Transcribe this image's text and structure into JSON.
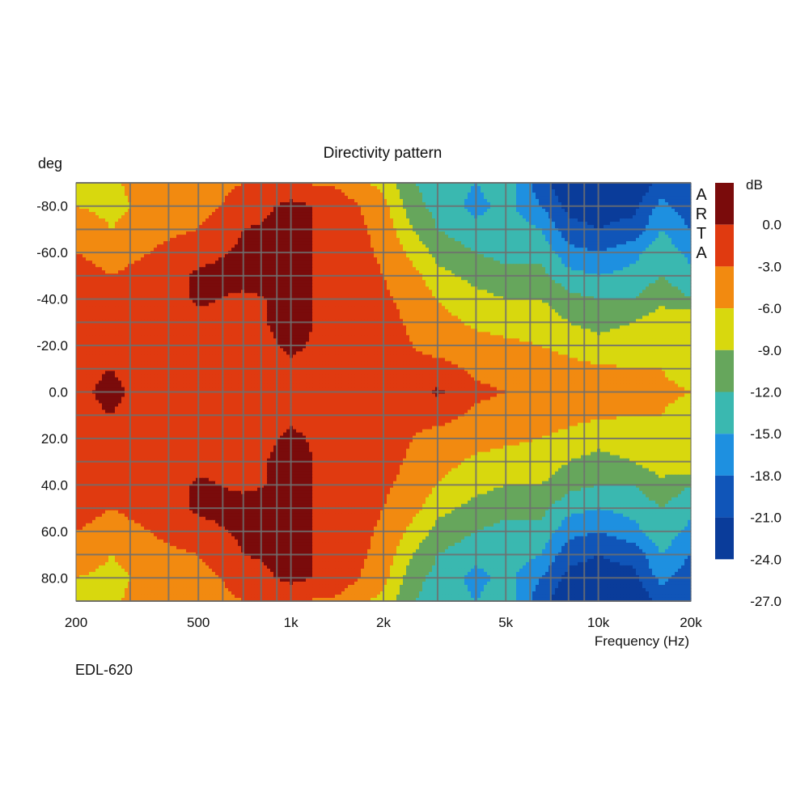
{
  "chart_data": {
    "type": "heatmap",
    "title": "Directivity pattern",
    "ylabel": "deg",
    "xlabel": "Frequency (Hz)",
    "x_scale": "log",
    "xlim": [
      200,
      20000
    ],
    "ylim": [
      -90,
      90
    ],
    "x_ticks": [
      {
        "value": 200,
        "label": "200"
      },
      {
        "value": 500,
        "label": "500"
      },
      {
        "value": 1000,
        "label": "1k"
      },
      {
        "value": 2000,
        "label": "2k"
      },
      {
        "value": 5000,
        "label": "5k"
      },
      {
        "value": 10000,
        "label": "10k"
      },
      {
        "value": 20000,
        "label": "20k"
      }
    ],
    "y_ticks": [
      -80,
      -60,
      -40,
      -20,
      0,
      20,
      40,
      60,
      80
    ],
    "y_tick_labels": [
      "-80.0",
      "-60.0",
      "-40.0",
      "-20.0",
      "0.0",
      "20.0",
      "40.0",
      "60.0",
      "80.0"
    ],
    "grid": true,
    "colorbar": {
      "unit": "dB",
      "max": 3,
      "min": -27,
      "step": 3,
      "tick_labels": [
        "0.0",
        "-3.0",
        "-6.0",
        "-9.0",
        "-12.0",
        "-15.0",
        "-18.0",
        "-21.0",
        "-24.0",
        "-27.0"
      ],
      "colors": [
        "#7a0b0b",
        "#e03a10",
        "#f28a10",
        "#d8d80e",
        "#66a65c",
        "#3ab8b0",
        "#1e90e0",
        "#1055b8",
        "#0a3c9a"
      ]
    },
    "side_label": [
      "A",
      "R",
      "T",
      "A"
    ],
    "level_model_note": "",
    "freqs": [
      200,
      260,
      350,
      500,
      700,
      1000,
      1400,
      2000,
      2500,
      3000,
      4000,
      5000,
      6500,
      8000,
      10000,
      13000,
      16000,
      20000
    ],
    "angles": [
      -90,
      -80,
      -70,
      -60,
      -50,
      -40,
      -30,
      -20,
      -10,
      0,
      10,
      20,
      30,
      40,
      50,
      60,
      70,
      80,
      90
    ],
    "values_db": [
      [
        -6,
        -6.5,
        -4.5,
        -4,
        -3,
        -3,
        -3.5,
        -7,
        -12,
        -13,
        -15,
        -13,
        -20,
        -23,
        -24,
        -24,
        -20,
        -21
      ],
      [
        -6,
        -7,
        -5,
        -4,
        -2,
        1,
        -1,
        -5,
        -11,
        -13,
        -16,
        -14,
        -18,
        -22,
        -22,
        -22,
        -17,
        -20
      ],
      [
        -3.5,
        -6,
        -4,
        -3,
        0,
        1,
        -1,
        -4,
        -9,
        -12,
        -14,
        -13,
        -15,
        -20,
        -21,
        -20,
        -15,
        -18
      ],
      [
        -3,
        -4,
        -3,
        -1,
        0.5,
        1,
        -1,
        -3.5,
        -7,
        -10,
        -12,
        -13,
        -13,
        -17,
        -18,
        -16,
        -13,
        -16
      ],
      [
        -2,
        -3,
        -2,
        0.5,
        1,
        1,
        -1,
        -3,
        -5,
        -8,
        -10,
        -11,
        -11,
        -14,
        -15,
        -14,
        -12,
        -14
      ],
      [
        -2,
        -2,
        -2,
        0.5,
        -0.5,
        0.5,
        -0.5,
        -2.5,
        -4,
        -6,
        -8,
        -9,
        -9,
        -11,
        -12,
        -12,
        -10,
        -12
      ],
      [
        -1.5,
        -2,
        -2,
        -1,
        -1,
        1,
        -1,
        -2,
        -3.5,
        -5,
        -6.5,
        -7,
        -7,
        -9,
        -10,
        -9,
        -7,
        -6
      ],
      [
        -1,
        -1,
        -1.5,
        -2,
        -1.5,
        0.5,
        -1,
        -2,
        -3,
        -4,
        -5,
        -5.5,
        -6,
        -7,
        -8,
        -7.5,
        -6,
        -9
      ],
      [
        -0.5,
        0,
        -1,
        -1.5,
        -1.5,
        -0.5,
        -1,
        -1.5,
        -2.5,
        -2,
        -3.5,
        -4,
        -4,
        -5,
        -5.5,
        -6,
        -6,
        -7
      ],
      [
        -0.5,
        0.5,
        -1,
        -1.5,
        -1.5,
        -2.5,
        -1,
        -1.5,
        -2,
        0.5,
        -2.5,
        -3,
        -3,
        -3.5,
        -4,
        -5,
        -5.5,
        -6
      ],
      [
        -0.5,
        0,
        -1,
        -1.5,
        -1.5,
        -0.5,
        -1,
        -1.5,
        -2.5,
        -2,
        -3.5,
        -4,
        -4,
        -5,
        -5.5,
        -6,
        -6,
        -7
      ],
      [
        -1,
        -1,
        -1.5,
        -2,
        -1.5,
        0.5,
        -1,
        -2,
        -3,
        -4,
        -5,
        -5.5,
        -6,
        -7,
        -8,
        -7.5,
        -6,
        -9
      ],
      [
        -1.5,
        -2,
        -2,
        -1,
        -1,
        1,
        -1,
        -2,
        -3.5,
        -5,
        -6.5,
        -7,
        -7,
        -9,
        -10,
        -9,
        -7,
        -6
      ],
      [
        -2,
        -2,
        -2,
        0.5,
        -0.5,
        0.5,
        -0.5,
        -2.5,
        -4,
        -6,
        -8,
        -9,
        -9,
        -11,
        -12,
        -12,
        -10,
        -12
      ],
      [
        -2,
        -3,
        -2,
        0.5,
        1,
        1,
        -1,
        -3,
        -5,
        -8,
        -10,
        -11,
        -11,
        -14,
        -15,
        -14,
        -12,
        -14
      ],
      [
        -3,
        -4,
        -3,
        -1,
        0.5,
        1,
        -1,
        -3.5,
        -7,
        -10,
        -12,
        -13,
        -13,
        -17,
        -18,
        -16,
        -13,
        -16
      ],
      [
        -3.5,
        -6,
        -4,
        -3,
        0,
        1,
        -1,
        -4,
        -9,
        -12,
        -14,
        -13,
        -15,
        -20,
        -21,
        -20,
        -15,
        -18
      ],
      [
        -6,
        -7,
        -5,
        -4,
        -2,
        1,
        -1,
        -5,
        -11,
        -13,
        -16,
        -14,
        -18,
        -22,
        -22,
        -22,
        -17,
        -20
      ],
      [
        -6,
        -6.5,
        -4.5,
        -4,
        -3,
        -3,
        -3.5,
        -7,
        -12,
        -13,
        -15,
        -13,
        -20,
        -23,
        -24,
        -24,
        -20,
        -21
      ]
    ]
  },
  "footer_label": "EDL-620"
}
